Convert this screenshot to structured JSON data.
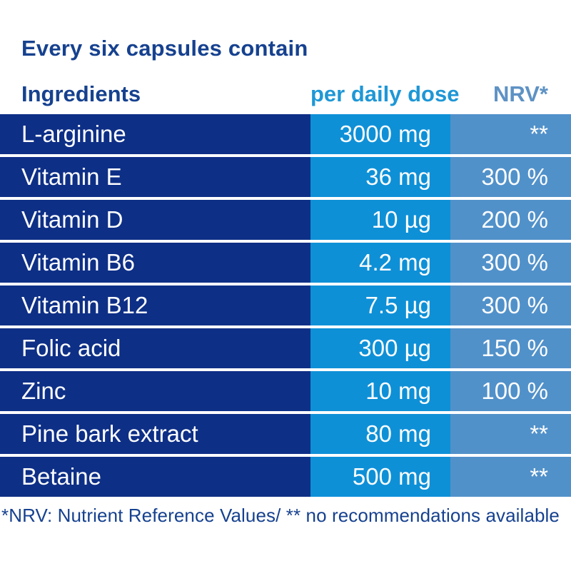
{
  "title": "Every six capsules contain",
  "colors": {
    "dark_text_blue": "#16418F",
    "ingredient_column_bg": "#0E2F86",
    "dose_column_bg": "#0E90D7",
    "nrv_column_bg": "#5191CA",
    "dose_header_text": "#1E97D6",
    "nrv_header_text": "#5E92C4",
    "row_text": "#FFFFFF",
    "separator": "#FFFFFF"
  },
  "table": {
    "headers": {
      "ingredients": "Ingredients",
      "dose": "per daily dose",
      "nrv": "NRV*"
    },
    "rows": [
      {
        "ingredient": "L-arginine",
        "dose": "3000 mg",
        "nrv": "**"
      },
      {
        "ingredient": "Vitamin E",
        "dose": "36 mg",
        "nrv": "300 %"
      },
      {
        "ingredient": "Vitamin D",
        "dose": "10 µg",
        "nrv": "200 %"
      },
      {
        "ingredient": "Vitamin B6",
        "dose": "4.2 mg",
        "nrv": "300 %"
      },
      {
        "ingredient": "Vitamin B12",
        "dose": "7.5 µg",
        "nrv": "300 %"
      },
      {
        "ingredient": "Folic acid",
        "dose": "300 µg",
        "nrv": "150 %"
      },
      {
        "ingredient": "Zinc",
        "dose": "10 mg",
        "nrv": "100 %"
      },
      {
        "ingredient": "Pine bark extract",
        "dose": "80 mg",
        "nrv": "**"
      },
      {
        "ingredient": "Betaine",
        "dose": "500 mg",
        "nrv": "**"
      }
    ],
    "footnote": "*NRV: Nutrient Reference Values/ ** no recommendations available"
  }
}
